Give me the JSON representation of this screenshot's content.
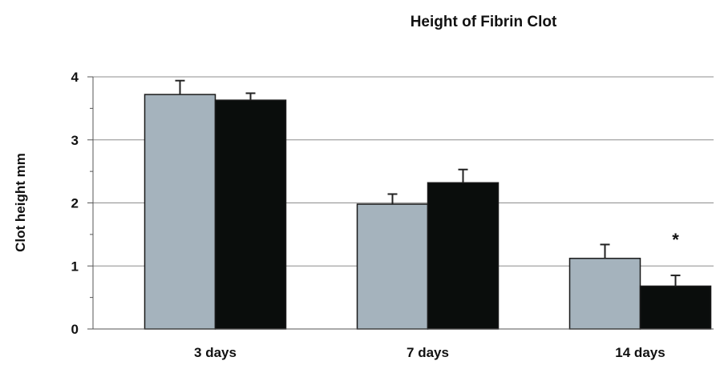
{
  "chart_data": {
    "type": "bar",
    "title": "Height of Fibrin Clot",
    "xlabel": "",
    "ylabel": "Clot height mm",
    "categories": [
      "3 days",
      "7 days",
      "14 days"
    ],
    "series": [
      {
        "values": [
          3.72,
          1.98,
          1.12
        ],
        "errors": [
          0.22,
          0.16,
          0.22
        ],
        "color": "#a5b3bd"
      },
      {
        "values": [
          3.63,
          2.32,
          0.68
        ],
        "errors": [
          0.11,
          0.21,
          0.17
        ],
        "color": "#0a0d0c"
      }
    ],
    "ylim": [
      0,
      4
    ],
    "yticks": [
      0,
      1,
      2,
      3,
      4
    ],
    "grid": true,
    "legend": "none",
    "annotations": [
      {
        "text": "*",
        "category": "14 days",
        "series_index": 1
      }
    ]
  }
}
